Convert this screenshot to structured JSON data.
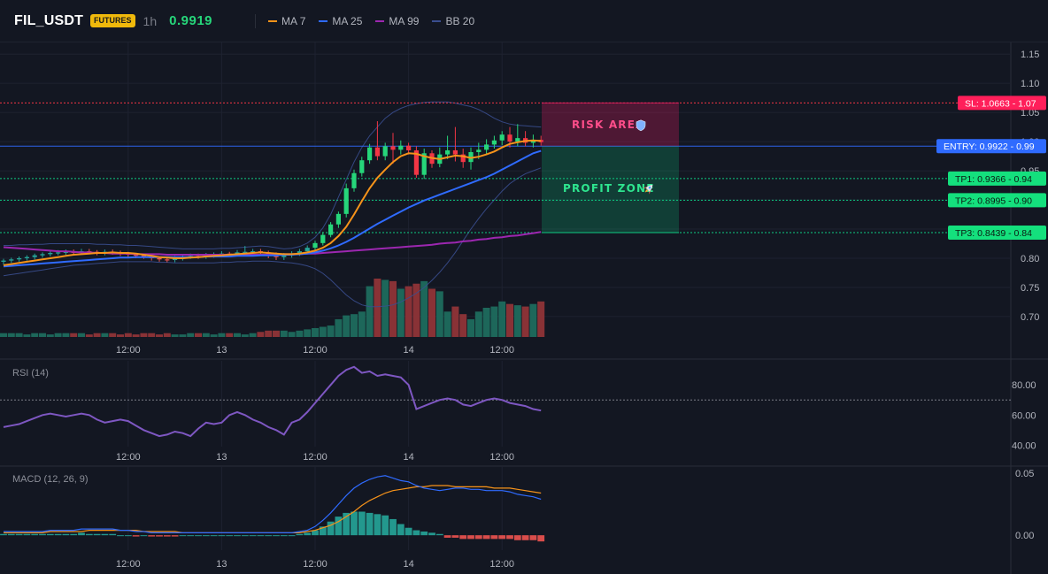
{
  "header": {
    "symbol": "FIL_USDT",
    "badge": "FUTURES",
    "timeframe": "1h",
    "price": "0.9919",
    "legend": [
      {
        "label": "MA 7",
        "color": "#f7931a"
      },
      {
        "label": "MA 25",
        "color": "#2f6bff"
      },
      {
        "label": "MA 99",
        "color": "#9c27b0"
      },
      {
        "label": "BB 20",
        "color": "#3a4e8f"
      }
    ]
  },
  "chart_data": [
    {
      "type": "candlestick",
      "title": "",
      "y_ticks": [
        1.15,
        1.1,
        1.05,
        1.0,
        0.95,
        0.9,
        0.85,
        0.8,
        0.75,
        0.7
      ],
      "y_tick_labels": [
        "1.15",
        "1.10",
        "1.05",
        "1.00",
        "0.95",
        "0.90",
        "0.85",
        "0.80",
        "0.75",
        "0.70"
      ],
      "ylim": [
        0.665,
        1.17
      ],
      "x_ticks": [
        {
          "label": "12:00",
          "index": 16
        },
        {
          "label": "13",
          "index": 28
        },
        {
          "label": "12:00",
          "index": 40
        },
        {
          "label": "14",
          "index": 52
        },
        {
          "label": "12:00",
          "index": 64
        }
      ],
      "colors": {
        "up": "#26a69a",
        "down": "#ef5350",
        "up_bright": "#26d67a",
        "down_bright": "#f23645"
      },
      "candles": [
        [
          0.794,
          0.796,
          0.789,
          0.799
        ],
        [
          0.796,
          0.798,
          0.792,
          0.801
        ],
        [
          0.798,
          0.8,
          0.794,
          0.803
        ],
        [
          0.8,
          0.802,
          0.796,
          0.805
        ],
        [
          0.802,
          0.805,
          0.798,
          0.808
        ],
        [
          0.805,
          0.807,
          0.801,
          0.81
        ],
        [
          0.807,
          0.809,
          0.803,
          0.812
        ],
        [
          0.809,
          0.81,
          0.805,
          0.814
        ],
        [
          0.81,
          0.811,
          0.806,
          0.815
        ],
        [
          0.811,
          0.81,
          0.806,
          0.815
        ],
        [
          0.81,
          0.812,
          0.806,
          0.816
        ],
        [
          0.812,
          0.811,
          0.807,
          0.816
        ],
        [
          0.811,
          0.809,
          0.805,
          0.814
        ],
        [
          0.809,
          0.811,
          0.805,
          0.815
        ],
        [
          0.811,
          0.81,
          0.806,
          0.815
        ],
        [
          0.81,
          0.808,
          0.804,
          0.813
        ],
        [
          0.808,
          0.806,
          0.802,
          0.811
        ],
        [
          0.806,
          0.805,
          0.8,
          0.809
        ],
        [
          0.805,
          0.803,
          0.799,
          0.808
        ],
        [
          0.803,
          0.8,
          0.796,
          0.806
        ],
        [
          0.8,
          0.798,
          0.794,
          0.803
        ],
        [
          0.798,
          0.797,
          0.793,
          0.802
        ],
        [
          0.797,
          0.8,
          0.793,
          0.804
        ],
        [
          0.8,
          0.803,
          0.796,
          0.807
        ],
        [
          0.803,
          0.804,
          0.799,
          0.808
        ],
        [
          0.804,
          0.803,
          0.799,
          0.808
        ],
        [
          0.803,
          0.805,
          0.799,
          0.809
        ],
        [
          0.805,
          0.806,
          0.801,
          0.81
        ],
        [
          0.806,
          0.808,
          0.802,
          0.812
        ],
        [
          0.808,
          0.807,
          0.803,
          0.811
        ],
        [
          0.807,
          0.81,
          0.803,
          0.814
        ],
        [
          0.81,
          0.811,
          0.806,
          0.821
        ],
        [
          0.811,
          0.812,
          0.807,
          0.816
        ],
        [
          0.812,
          0.81,
          0.805,
          0.816
        ],
        [
          0.81,
          0.806,
          0.8,
          0.813
        ],
        [
          0.806,
          0.802,
          0.797,
          0.81
        ],
        [
          0.802,
          0.805,
          0.797,
          0.809
        ],
        [
          0.805,
          0.808,
          0.801,
          0.812
        ],
        [
          0.808,
          0.812,
          0.804,
          0.816
        ],
        [
          0.812,
          0.818,
          0.808,
          0.822
        ],
        [
          0.818,
          0.826,
          0.814,
          0.83
        ],
        [
          0.826,
          0.84,
          0.822,
          0.845
        ],
        [
          0.84,
          0.858,
          0.836,
          0.862
        ],
        [
          0.858,
          0.876,
          0.852,
          0.88
        ],
        [
          0.876,
          0.92,
          0.87,
          0.928
        ],
        [
          0.92,
          0.946,
          0.914,
          0.952
        ],
        [
          0.946,
          0.968,
          0.94,
          0.974
        ],
        [
          0.968,
          0.99,
          0.962,
          0.996
        ],
        [
          0.99,
          0.975,
          0.968,
          1.035
        ],
        [
          0.975,
          0.992,
          0.968,
          0.998
        ],
        [
          0.992,
          0.986,
          0.962,
          1.015
        ],
        [
          0.986,
          0.993,
          0.978,
          1.002
        ],
        [
          0.993,
          0.985,
          0.978,
          0.998
        ],
        [
          0.985,
          0.943,
          0.938,
          0.992
        ],
        [
          0.943,
          0.98,
          0.936,
          0.988
        ],
        [
          0.98,
          0.962,
          0.955,
          0.985
        ],
        [
          0.962,
          0.978,
          0.956,
          0.99
        ],
        [
          0.978,
          0.985,
          0.97,
          1.01
        ],
        [
          0.985,
          0.978,
          0.966,
          1.025
        ],
        [
          0.978,
          0.965,
          0.955,
          0.988
        ],
        [
          0.965,
          0.982,
          0.952,
          0.99
        ],
        [
          0.982,
          0.986,
          0.97,
          0.998
        ],
        [
          0.986,
          0.995,
          0.978,
          1.004
        ],
        [
          0.995,
          1.002,
          0.988,
          1.01
        ],
        [
          1.002,
          1.012,
          0.994,
          1.018
        ],
        [
          1.012,
          1.0,
          0.99,
          1.025
        ],
        [
          1.0,
          1.006,
          0.992,
          1.03
        ],
        [
          1.006,
          0.998,
          0.992,
          1.018
        ],
        [
          0.998,
          1.003,
          0.99,
          1.012
        ],
        [
          1.003,
          0.999,
          0.993,
          1.01
        ]
      ],
      "volumes": [
        3,
        3,
        3,
        2,
        3,
        3,
        2,
        3,
        3,
        3,
        3,
        2,
        3,
        3,
        3,
        2,
        3,
        2,
        3,
        3,
        2,
        3,
        2,
        2,
        3,
        3,
        3,
        2,
        3,
        3,
        3,
        2,
        3,
        4,
        5,
        5,
        5,
        4,
        5,
        6,
        7,
        8,
        9,
        14,
        17,
        18,
        20,
        40,
        46,
        45,
        44,
        38,
        40,
        42,
        44,
        38,
        36,
        20,
        24,
        18,
        14,
        20,
        23,
        24,
        28,
        26,
        25,
        24,
        26,
        28
      ],
      "ma7": [
        0.788,
        0.79,
        0.792,
        0.794,
        0.796,
        0.798,
        0.8,
        0.802,
        0.804,
        0.806,
        0.807,
        0.808,
        0.809,
        0.809,
        0.81,
        0.809,
        0.809,
        0.808,
        0.806,
        0.804,
        0.802,
        0.801,
        0.8,
        0.8,
        0.801,
        0.802,
        0.803,
        0.804,
        0.805,
        0.806,
        0.807,
        0.808,
        0.809,
        0.81,
        0.809,
        0.808,
        0.807,
        0.807,
        0.808,
        0.81,
        0.813,
        0.818,
        0.826,
        0.838,
        0.854,
        0.875,
        0.898,
        0.92,
        0.938,
        0.952,
        0.965,
        0.975,
        0.98,
        0.979,
        0.975,
        0.972,
        0.97,
        0.973,
        0.976,
        0.975,
        0.972,
        0.974,
        0.978,
        0.983,
        0.99,
        0.996,
        0.999,
        1.001,
        1.002,
        1.001
      ],
      "ma25": [
        0.786,
        0.787,
        0.788,
        0.789,
        0.79,
        0.791,
        0.792,
        0.793,
        0.794,
        0.795,
        0.796,
        0.797,
        0.798,
        0.799,
        0.8,
        0.801,
        0.801,
        0.802,
        0.802,
        0.802,
        0.802,
        0.802,
        0.802,
        0.802,
        0.802,
        0.802,
        0.803,
        0.803,
        0.803,
        0.803,
        0.804,
        0.804,
        0.804,
        0.805,
        0.805,
        0.805,
        0.806,
        0.806,
        0.807,
        0.808,
        0.81,
        0.813,
        0.817,
        0.822,
        0.828,
        0.835,
        0.843,
        0.851,
        0.859,
        0.866,
        0.873,
        0.88,
        0.887,
        0.893,
        0.899,
        0.904,
        0.909,
        0.914,
        0.919,
        0.924,
        0.929,
        0.934,
        0.939,
        0.945,
        0.952,
        0.959,
        0.966,
        0.973,
        0.98,
        0.984
      ],
      "ma99": [
        0.819,
        0.818,
        0.817,
        0.816,
        0.815,
        0.814,
        0.813,
        0.812,
        0.812,
        0.811,
        0.81,
        0.81,
        0.809,
        0.809,
        0.808,
        0.808,
        0.808,
        0.807,
        0.807,
        0.807,
        0.807,
        0.806,
        0.806,
        0.806,
        0.806,
        0.806,
        0.806,
        0.806,
        0.806,
        0.806,
        0.806,
        0.806,
        0.806,
        0.806,
        0.806,
        0.806,
        0.807,
        0.807,
        0.807,
        0.808,
        0.808,
        0.809,
        0.81,
        0.811,
        0.812,
        0.813,
        0.814,
        0.815,
        0.816,
        0.817,
        0.818,
        0.819,
        0.82,
        0.821,
        0.822,
        0.823,
        0.825,
        0.826,
        0.827,
        0.829,
        0.83,
        0.832,
        0.833,
        0.835,
        0.836,
        0.838,
        0.839,
        0.841,
        0.843,
        0.845
      ],
      "bb_upper": [
        0.822,
        0.822,
        0.823,
        0.823,
        0.824,
        0.824,
        0.825,
        0.825,
        0.825,
        0.825,
        0.825,
        0.825,
        0.824,
        0.824,
        0.823,
        0.823,
        0.822,
        0.822,
        0.821,
        0.82,
        0.819,
        0.818,
        0.817,
        0.816,
        0.816,
        0.816,
        0.816,
        0.816,
        0.817,
        0.817,
        0.818,
        0.819,
        0.82,
        0.821,
        0.82,
        0.818,
        0.816,
        0.817,
        0.82,
        0.826,
        0.836,
        0.852,
        0.875,
        0.905,
        0.935,
        0.965,
        0.99,
        1.01,
        1.025,
        1.04,
        1.05,
        1.057,
        1.062,
        1.065,
        1.067,
        1.068,
        1.068,
        1.068,
        1.066,
        1.063,
        1.06,
        1.055,
        1.048,
        1.04,
        1.034,
        1.03,
        1.028,
        1.027,
        1.026,
        1.025
      ],
      "bb_lower": [
        0.77,
        0.772,
        0.774,
        0.776,
        0.778,
        0.78,
        0.782,
        0.784,
        0.786,
        0.788,
        0.789,
        0.79,
        0.791,
        0.792,
        0.793,
        0.794,
        0.794,
        0.794,
        0.794,
        0.794,
        0.793,
        0.793,
        0.792,
        0.792,
        0.792,
        0.792,
        0.792,
        0.792,
        0.793,
        0.793,
        0.794,
        0.794,
        0.795,
        0.795,
        0.795,
        0.794,
        0.793,
        0.792,
        0.79,
        0.787,
        0.782,
        0.774,
        0.763,
        0.75,
        0.737,
        0.727,
        0.72,
        0.717,
        0.717,
        0.718,
        0.72,
        0.725,
        0.732,
        0.74,
        0.75,
        0.762,
        0.776,
        0.792,
        0.81,
        0.83,
        0.85,
        0.868,
        0.885,
        0.9,
        0.915,
        0.928,
        0.937,
        0.945,
        0.95,
        0.955
      ],
      "levels": [
        {
          "name": "sl",
          "label": "SL: 1.0663",
          "axis_label": "1.07",
          "value": 1.0663,
          "color": "#f23645"
        },
        {
          "name": "entry",
          "label": "ENTRY: 0.9922",
          "axis_label": "0.99",
          "value": 0.9922,
          "color": "#2f6bff"
        },
        {
          "name": "tp1",
          "label": "TP1: 0.9366",
          "axis_label": "0.94",
          "value": 0.9366,
          "color": "#0ecb81"
        },
        {
          "name": "tp2",
          "label": "TP2: 0.8995",
          "axis_label": "0.90",
          "value": 0.8995,
          "color": "#0ecb81"
        },
        {
          "name": "tp3",
          "label": "TP3: 0.8439",
          "axis_label": "0.84",
          "value": 0.8439,
          "color": "#0ecb81"
        }
      ],
      "zones": {
        "risk": {
          "label": "RISK AREA",
          "icon": "shield",
          "from": 0.9922,
          "to": 1.0663,
          "color": "#e91e63"
        },
        "profit": {
          "label": "PROFIT ZONE",
          "icon": "rocket",
          "from": 0.8439,
          "to": 0.9922,
          "color": "#0ecb81"
        }
      }
    },
    {
      "type": "line",
      "title": "RSI (14)",
      "ylim": [
        39,
        96
      ],
      "y_ticks": [
        80,
        60,
        40
      ],
      "y_tick_labels": [
        "80.00",
        "60.00",
        "40.00"
      ],
      "overbought": 70,
      "color": "#7e57c2",
      "values": [
        52,
        53,
        54,
        56,
        58,
        60,
        61,
        60,
        59,
        60,
        61,
        60,
        57,
        55,
        56,
        57,
        56,
        53,
        50,
        48,
        46,
        47,
        49,
        48,
        46,
        51,
        55,
        54,
        55,
        60,
        62,
        60,
        57,
        55,
        52,
        50,
        47,
        55,
        57,
        62,
        68,
        74,
        80,
        86,
        90,
        92,
        88,
        89,
        86,
        87,
        86,
        85,
        80,
        64,
        66,
        68,
        70,
        71,
        70,
        67,
        66,
        68,
        70,
        71,
        70,
        68,
        67,
        66,
        64,
        63
      ],
      "x_ticks": [
        "12:00",
        "13",
        "12:00",
        "14",
        "12:00"
      ]
    },
    {
      "type": "line+bar",
      "title": "MACD (12, 26, 9)",
      "ylim": [
        -0.012,
        0.055
      ],
      "y_ticks": [
        0.05,
        0.0
      ],
      "y_tick_labels": [
        "0.05",
        "0.00"
      ],
      "macd_color": "#2f6bff",
      "signal_color": "#f7931a",
      "hist_up_color": "#26a69a",
      "hist_down_color": "#ef5350",
      "macd": [
        0.003,
        0.003,
        0.003,
        0.003,
        0.003,
        0.003,
        0.004,
        0.004,
        0.004,
        0.004,
        0.005,
        0.005,
        0.005,
        0.005,
        0.005,
        0.004,
        0.004,
        0.003,
        0.003,
        0.002,
        0.002,
        0.002,
        0.002,
        0.002,
        0.002,
        0.002,
        0.002,
        0.002,
        0.002,
        0.002,
        0.002,
        0.002,
        0.002,
        0.002,
        0.002,
        0.002,
        0.002,
        0.002,
        0.003,
        0.004,
        0.007,
        0.012,
        0.018,
        0.025,
        0.032,
        0.038,
        0.042,
        0.045,
        0.047,
        0.048,
        0.046,
        0.044,
        0.043,
        0.04,
        0.038,
        0.037,
        0.036,
        0.037,
        0.038,
        0.038,
        0.037,
        0.037,
        0.036,
        0.036,
        0.036,
        0.035,
        0.033,
        0.032,
        0.031,
        0.029
      ],
      "signal": [
        0.002,
        0.002,
        0.002,
        0.002,
        0.002,
        0.002,
        0.003,
        0.003,
        0.003,
        0.003,
        0.003,
        0.004,
        0.004,
        0.004,
        0.004,
        0.004,
        0.004,
        0.004,
        0.003,
        0.003,
        0.003,
        0.003,
        0.003,
        0.002,
        0.002,
        0.002,
        0.002,
        0.002,
        0.002,
        0.002,
        0.002,
        0.002,
        0.002,
        0.002,
        0.002,
        0.002,
        0.002,
        0.002,
        0.002,
        0.003,
        0.004,
        0.006,
        0.008,
        0.011,
        0.015,
        0.019,
        0.024,
        0.028,
        0.031,
        0.034,
        0.036,
        0.037,
        0.038,
        0.039,
        0.039,
        0.04,
        0.04,
        0.04,
        0.039,
        0.039,
        0.039,
        0.039,
        0.039,
        0.038,
        0.038,
        0.038,
        0.037,
        0.036,
        0.035,
        0.034
      ],
      "histogram": [
        0.001,
        0.001,
        0.001,
        0.001,
        0.001,
        0.001,
        0.001,
        0.001,
        0.001,
        0.001,
        0.002,
        0.001,
        0.001,
        0.001,
        0.001,
        0.0,
        0.0,
        -0.001,
        0.0,
        -0.001,
        -0.001,
        -0.001,
        -0.001,
        0.0,
        0.0,
        0.0,
        0.0,
        0.0,
        0.0,
        0.0,
        0.0,
        0.0,
        0.0,
        0.0,
        0.0,
        0.0,
        0.0,
        0.0,
        0.001,
        0.002,
        0.004,
        0.007,
        0.011,
        0.015,
        0.018,
        0.019,
        0.019,
        0.018,
        0.017,
        0.016,
        0.013,
        0.009,
        0.006,
        0.004,
        0.003,
        0.002,
        0.001,
        -0.002,
        -0.002,
        -0.003,
        -0.003,
        -0.003,
        -0.003,
        -0.003,
        -0.003,
        -0.003,
        -0.004,
        -0.004,
        -0.004,
        -0.005
      ],
      "x_ticks": [
        "12:00",
        "13",
        "12:00",
        "14",
        "12:00"
      ]
    }
  ]
}
